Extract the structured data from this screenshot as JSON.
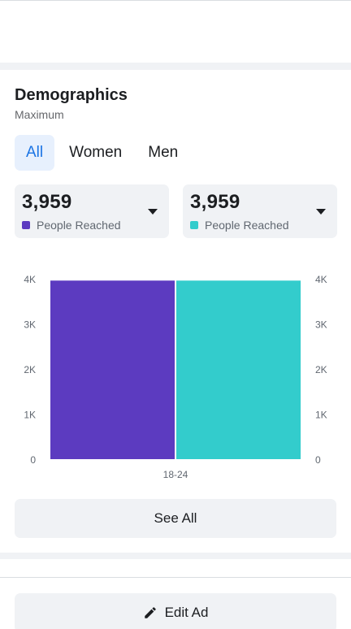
{
  "demographics": {
    "title": "Demographics",
    "subtitle": "Maximum",
    "tabs": [
      {
        "label": "All",
        "active": true
      },
      {
        "label": "Women",
        "active": false
      },
      {
        "label": "Men",
        "active": false
      }
    ],
    "stats": [
      {
        "value": "3,959",
        "label": "People Reached",
        "color": "#5c3bc0"
      },
      {
        "value": "3,959",
        "label": "People Reached",
        "color": "#33cccc"
      }
    ],
    "see_all_label": "See All"
  },
  "chart_data": {
    "type": "bar",
    "categories": [
      "18-24"
    ],
    "series": [
      {
        "values": [
          3959
        ],
        "color": "#5c3bc0"
      },
      {
        "values": [
          3959
        ],
        "color": "#33cccc"
      }
    ],
    "y_ticks": [
      "0",
      "1K",
      "2K",
      "3K",
      "4K"
    ],
    "ylim": [
      0,
      4000
    ],
    "grid": false
  },
  "footer": {
    "edit_label": "Edit Ad",
    "edit_icon": "pencil-icon"
  }
}
